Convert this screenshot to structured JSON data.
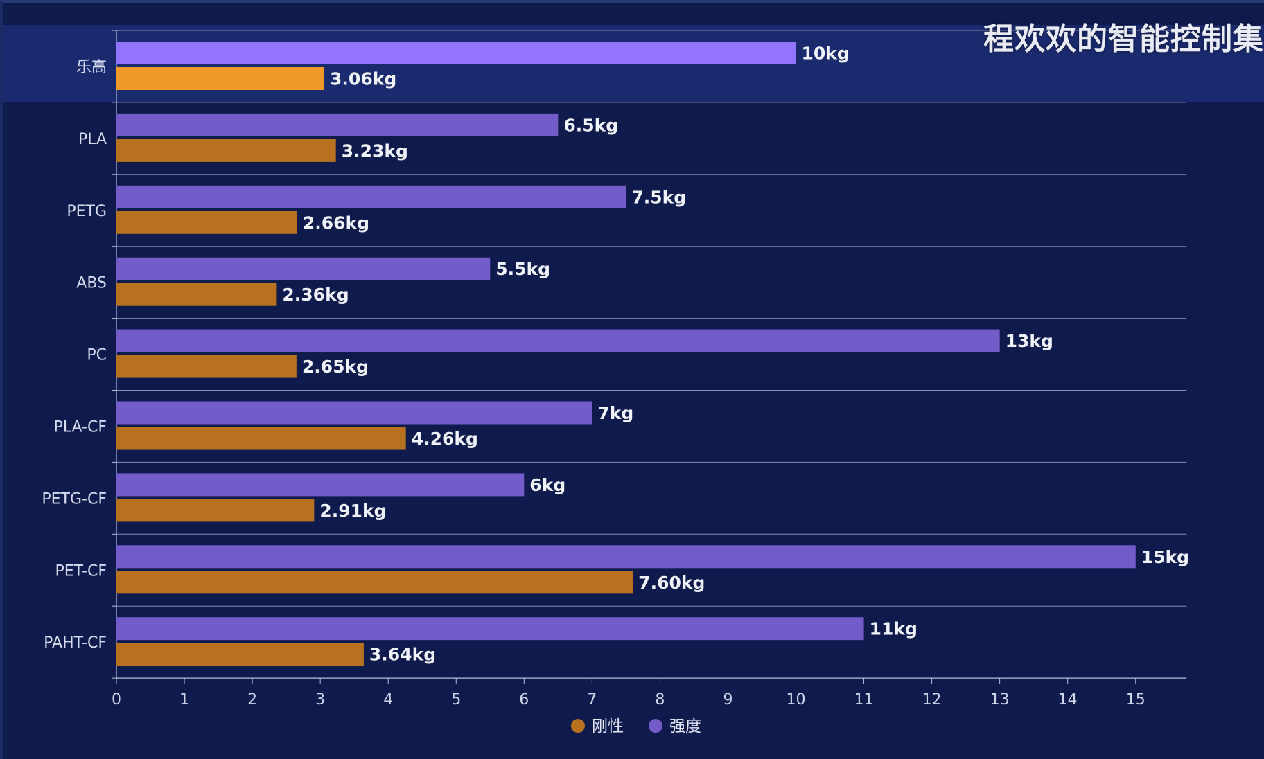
{
  "watermark": "程欢欢的智能控制集",
  "chart_data": {
    "type": "bar",
    "orientation": "horizontal",
    "title": "",
    "xlabel": "",
    "ylabel": "",
    "xlim": [
      0,
      15.75
    ],
    "x_ticks": [
      0,
      1,
      2,
      3,
      4,
      5,
      6,
      7,
      8,
      9,
      10,
      11,
      12,
      13,
      14,
      15
    ],
    "categories": [
      "乐高",
      "PLA",
      "PETG",
      "ABS",
      "PC",
      "PLA-CF",
      "PETG-CF",
      "PET-CF",
      "PAHT-CF"
    ],
    "highlighted_category": "乐高",
    "series": [
      {
        "name": "强度",
        "color": "#735bca",
        "highlight_color": "#9374ff",
        "values": [
          10,
          6.5,
          7.5,
          5.5,
          13,
          7,
          6,
          15,
          11
        ],
        "labels": [
          "10kg",
          "6.5kg",
          "7.5kg",
          "5.5kg",
          "13kg",
          "7kg",
          "6kg",
          "15kg",
          "11kg"
        ]
      },
      {
        "name": "刚性",
        "color": "#b8711f",
        "highlight_color": "#f0982a",
        "values": [
          3.06,
          3.23,
          2.66,
          2.36,
          2.65,
          4.26,
          2.91,
          7.6,
          3.64
        ],
        "labels": [
          "3.06kg",
          "3.23kg",
          "2.66kg",
          "2.36kg",
          "2.65kg",
          "4.26kg",
          "2.91kg",
          "7.60kg",
          "3.64kg"
        ]
      }
    ],
    "legend": {
      "position": "bottom-center",
      "order": [
        "刚性",
        "强度"
      ]
    },
    "grid": true
  }
}
